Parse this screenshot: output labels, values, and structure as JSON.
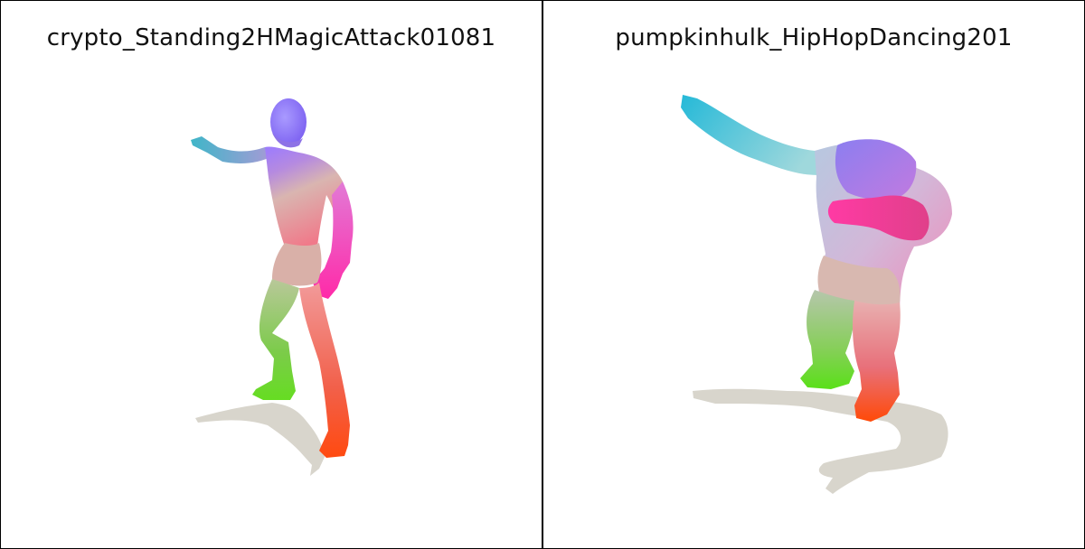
{
  "panels": [
    {
      "title": "crypto_Standing2HMagicAttack01081"
    },
    {
      "title": "pumpkinhulk_HipHopDancing201"
    }
  ],
  "colors": {
    "shadow": "#d8d5cc",
    "border": "#000000",
    "background": "#ffffff"
  }
}
